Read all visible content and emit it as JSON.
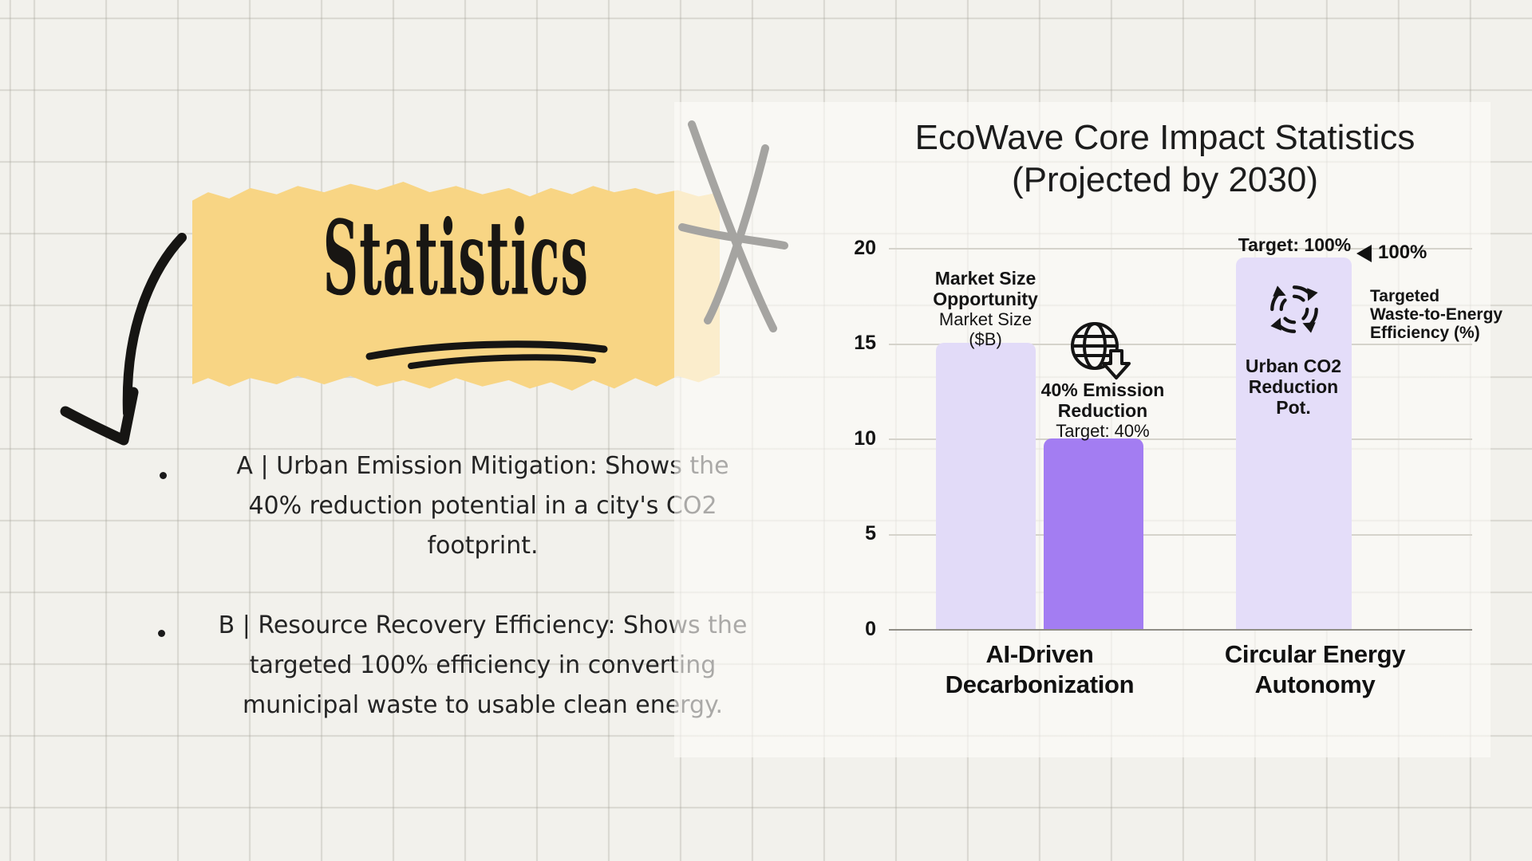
{
  "slide": {
    "title": "Statistics",
    "bullets": [
      {
        "marker": "bullet-dot",
        "text": "A | Urban Emission Mitigation: Shows the 40% reduction potential in a city's CO2 footprint.",
        "lines": [
          "A | Urban Emission Mitigation: Shows the",
          "40% reduction potential in a city's CO2",
          "footprint."
        ]
      },
      {
        "marker": "bullet-dot",
        "text": "B | Resource Recovery Efficiency: Shows the targeted 100% efficiency in converting municipal waste to usable clean energy.",
        "lines": [
          "B | Resource Recovery Efficiency: Shows the",
          "targeted 100% efficiency in converting",
          "municipal waste to usable clean energy."
        ]
      }
    ],
    "doodles": [
      "arrow-doodle",
      "asterisk-doodle",
      "underline-doodle",
      "torn-paper-highlight"
    ]
  },
  "colors": {
    "background_paper": "#f2f1ec",
    "grid_line": "#dcdad2",
    "chart_panel": "#fbfaf6",
    "highlight_yellow": "#f8d584",
    "bar_light_purple": "#e2dbf8",
    "bar_medium_purple": "#a37df2",
    "bar_light_purple_2": "#e4ddf9",
    "ink": "#141414"
  },
  "chart_data": {
    "type": "bar",
    "title": "EcoWave Core Impact Statistics (Projected by 2030)",
    "title_lines": [
      "EcoWave Core Impact Statistics",
      "(Projected by 2030)"
    ],
    "xlabel": "",
    "ylabel": "",
    "ylim": [
      0,
      20
    ],
    "yticks": [
      0,
      5,
      10,
      15,
      20
    ],
    "grid": true,
    "categories": [
      "AI-Driven Decarbonization",
      "Circular Energy Autonomy"
    ],
    "categories_lines": [
      [
        "AI-Driven",
        "Decarbonization"
      ],
      [
        "Circular Energy",
        "Autonomy"
      ]
    ],
    "bars": [
      {
        "category": "AI-Driven Decarbonization",
        "label": "Market Size Opportunity",
        "label_lines": [
          "Market Size",
          "Opportunity"
        ],
        "sublabel": "Market Size ($B)",
        "sublabel_lines": [
          "Market Size",
          "($B)"
        ],
        "value": 15,
        "unit": "$B",
        "color": "#e2dbf8"
      },
      {
        "category": "AI-Driven Decarbonization",
        "label": "40% Emission Reduction",
        "label_lines": [
          "40% Emission",
          "Reduction"
        ],
        "sublabel": "Target: 40%",
        "value": 10,
        "target": "40%",
        "color": "#a37df2",
        "icon": "globe-down-arrow-icon"
      },
      {
        "category": "Circular Energy Autonomy",
        "label": "Urban CO2 Reduction Pot.",
        "label_lines": [
          "Urban CO2",
          "Reduction Pot."
        ],
        "above_label": "Target: 100%",
        "value": 19.5,
        "display_value": "100%",
        "marker_icon": "left-triangle-icon",
        "axis_label": "Targeted Waste-to-Energy Efficiency (%)",
        "axis_label_lines": [
          "Targeted",
          "Waste-to-Energy",
          "Efficiency (%)"
        ],
        "color": "#e4ddf9",
        "icon": "recycle-icon"
      }
    ]
  }
}
